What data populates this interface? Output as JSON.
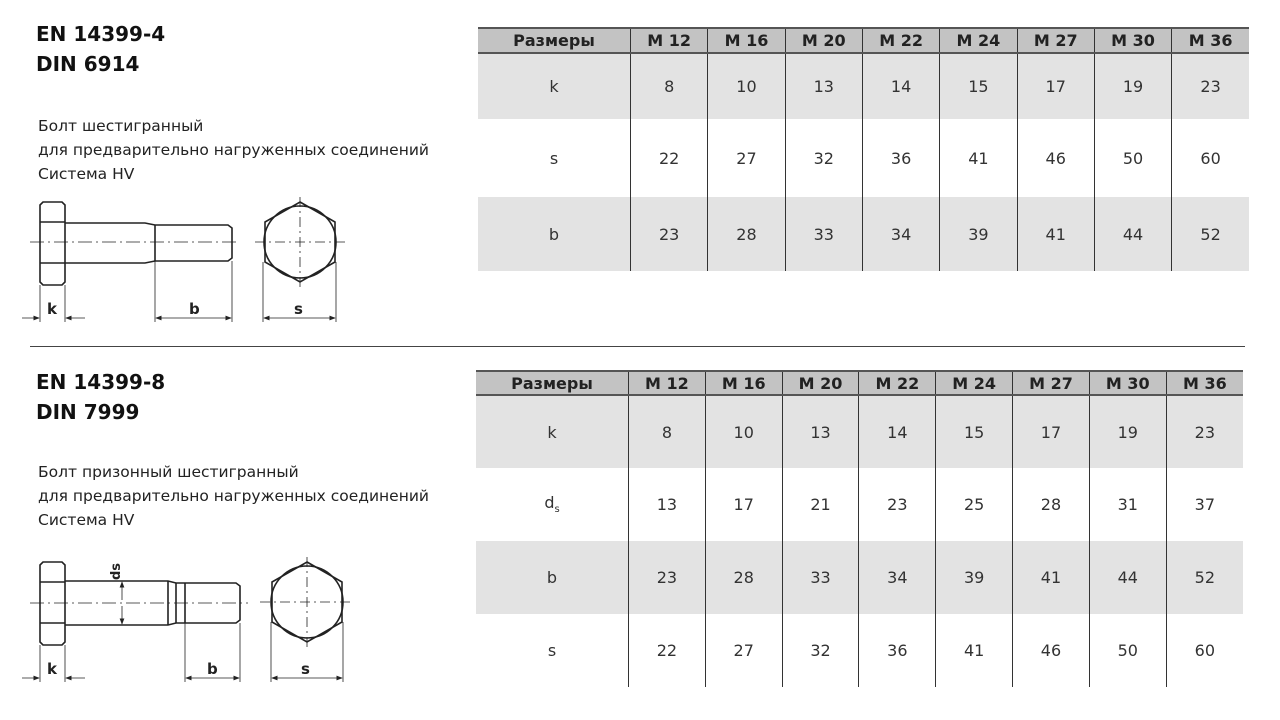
{
  "section1": {
    "standard_lines": [
      "EN 14399-4",
      "DIN 6914"
    ],
    "description_lines": [
      "Болт шестигранный",
      "для предварительно нагруженных соединений",
      "Система  HV"
    ],
    "drawing_labels": {
      "k": "k",
      "b": "b",
      "s": "s"
    },
    "table": {
      "headers": [
        "Размеры",
        "M 12",
        "M 16",
        "M 20",
        "M 22",
        "M 24",
        "M 27",
        "M 30",
        "M 36"
      ],
      "rows": [
        {
          "label": "k",
          "values": [
            "8",
            "10",
            "13",
            "14",
            "15",
            "17",
            "19",
            "23"
          ]
        },
        {
          "label": "s",
          "values": [
            "22",
            "27",
            "32",
            "36",
            "41",
            "46",
            "50",
            "60"
          ]
        },
        {
          "label": "b",
          "values": [
            "23",
            "28",
            "33",
            "34",
            "39",
            "41",
            "44",
            "52"
          ]
        }
      ]
    }
  },
  "section2": {
    "standard_lines": [
      "EN 14399-8",
      "DIN 7999"
    ],
    "description_lines": [
      "Болт призонный  шестигранный",
      "для предварительно нагруженных соединений",
      "Система  HV"
    ],
    "drawing_labels": {
      "k": "k",
      "b": "b",
      "s": "s",
      "ds": "ds"
    },
    "table": {
      "headers": [
        "Размеры",
        "M 12",
        "M 16",
        "M 20",
        "M 22",
        "M 24",
        "M 27",
        "M 30",
        "M 36"
      ],
      "rows": [
        {
          "label": "k",
          "values": [
            "8",
            "10",
            "13",
            "14",
            "15",
            "17",
            "19",
            "23"
          ]
        },
        {
          "label": "ds",
          "values": [
            "13",
            "17",
            "21",
            "23",
            "25",
            "28",
            "31",
            "37"
          ]
        },
        {
          "label": "b",
          "values": [
            "23",
            "28",
            "33",
            "34",
            "39",
            "41",
            "44",
            "52"
          ]
        },
        {
          "label": "s",
          "values": [
            "22",
            "27",
            "32",
            "36",
            "41",
            "46",
            "50",
            "60"
          ]
        }
      ]
    }
  },
  "colors": {
    "header_bg": "#c3c3c3",
    "shaded_row": "#e3e3e3"
  }
}
